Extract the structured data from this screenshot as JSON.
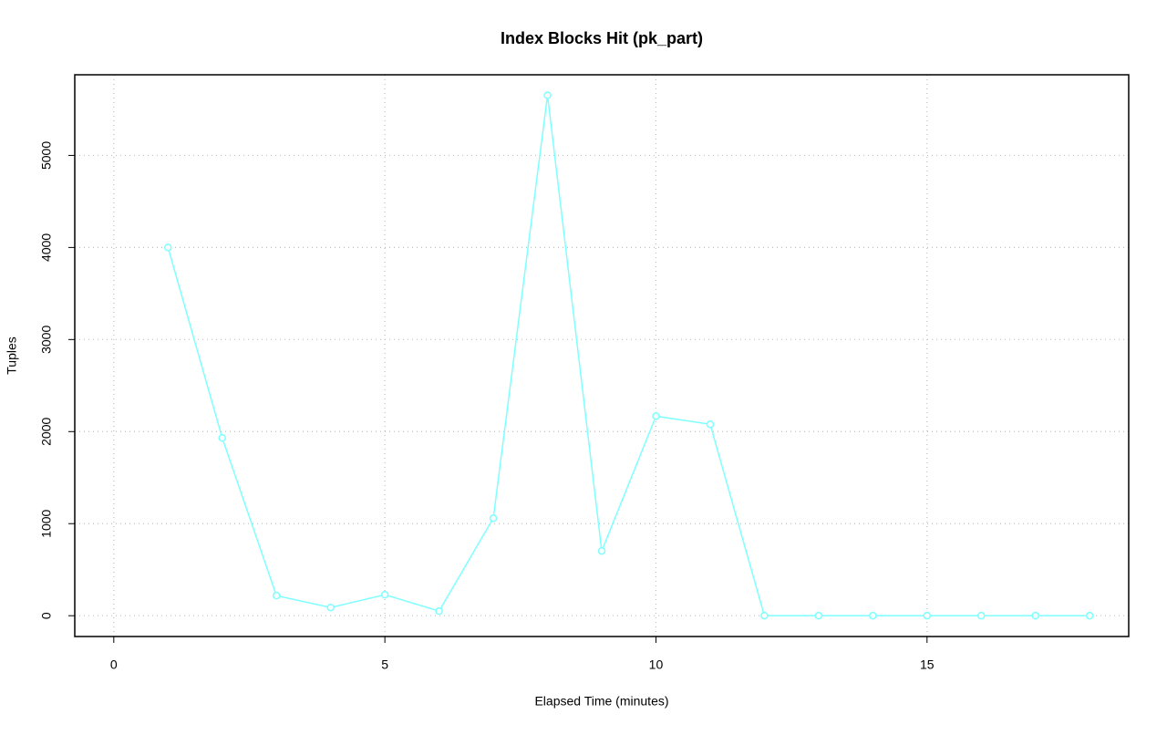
{
  "chart_data": {
    "type": "line",
    "title": "Index Blocks Hit (pk_part)",
    "x_label": "Elapsed Time (minutes)",
    "y_label": "Tuples",
    "x": [
      1,
      2,
      3,
      4,
      5,
      6,
      7,
      8,
      9,
      10,
      11,
      12,
      13,
      14,
      15,
      16,
      17,
      18
    ],
    "series": [
      {
        "color": "#7fffff",
        "values": [
          4000,
          1931,
          218,
          89,
          228,
          50,
          1059,
          5653,
          703,
          2168,
          2079,
          0,
          0,
          0,
          0,
          0,
          0,
          0
        ]
      }
    ],
    "xlim": [
      -0.72,
      18.72
    ],
    "xticks": [
      0,
      5,
      10,
      15
    ],
    "ylim": [
      -226,
      5876
    ],
    "yticks": [
      0,
      1000,
      2000,
      3000,
      4000,
      5000
    ],
    "grid": true
  }
}
